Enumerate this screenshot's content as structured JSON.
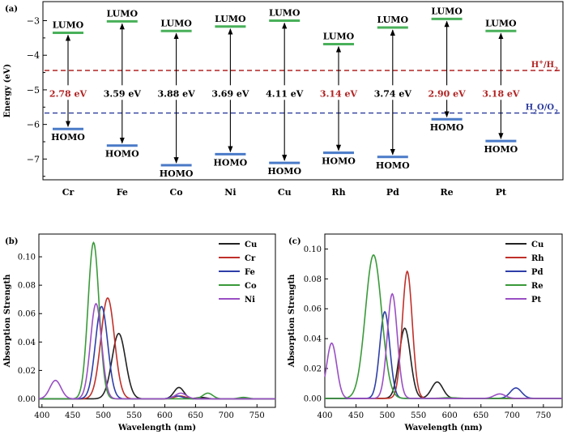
{
  "chart_data": [
    {
      "panel_label": "(a)",
      "type": "energy-level",
      "ylabel": "Energy (eV)",
      "ylim": [
        -7.6,
        -2.45
      ],
      "yticks": [
        -3,
        -4,
        -5,
        -6,
        -7
      ],
      "ytick_labels": [
        "−3",
        "−4",
        "−5",
        "−6",
        "−7"
      ],
      "lumo_text": "LUMO",
      "homo_text": "HOMO",
      "reference_lines": [
        {
          "label_main": "H",
          "label_sup": "+",
          "label_mid": "/H",
          "label_sub": "2",
          "energy": -4.44,
          "color": "#b22222"
        },
        {
          "label_main": "H",
          "label_sub": "2",
          "label_mid": "O/O",
          "label_sub2": "2",
          "energy": -5.67,
          "color": "#2b3b9c"
        }
      ],
      "metals": [
        {
          "name": "Cr",
          "lumo": -3.35,
          "homo": -6.13,
          "gap_label": "2.78 eV",
          "gap_color": "#b22222"
        },
        {
          "name": "Fe",
          "lumo": -3.02,
          "homo": -6.61,
          "gap_label": "3.59 eV",
          "gap_color": "#000000"
        },
        {
          "name": "Co",
          "lumo": -3.3,
          "homo": -7.18,
          "gap_label": "3.88 eV",
          "gap_color": "#000000"
        },
        {
          "name": "Ni",
          "lumo": -3.17,
          "homo": -6.86,
          "gap_label": "3.69 eV",
          "gap_color": "#000000"
        },
        {
          "name": "Cu",
          "lumo": -3.0,
          "homo": -7.11,
          "gap_label": "4.11 eV",
          "gap_color": "#000000"
        },
        {
          "name": "Rh",
          "lumo": -3.68,
          "homo": -6.82,
          "gap_label": "3.14 eV",
          "gap_color": "#b22222"
        },
        {
          "name": "Pd",
          "lumo": -3.2,
          "homo": -6.94,
          "gap_label": "3.74 eV",
          "gap_color": "#000000"
        },
        {
          "name": "Re",
          "lumo": -2.95,
          "homo": -5.85,
          "gap_label": "2.90 eV",
          "gap_color": "#b22222"
        },
        {
          "name": "Pt",
          "lumo": -3.3,
          "homo": -6.48,
          "gap_label": "3.18 eV",
          "gap_color": "#b22222"
        }
      ]
    },
    {
      "panel_label": "(b)",
      "type": "line",
      "xlabel": "Wavelength (nm)",
      "ylabel": "Absorption Strength",
      "xlim": [
        395,
        780
      ],
      "ylim": [
        -0.006,
        0.116
      ],
      "xticks": [
        400,
        450,
        500,
        550,
        600,
        650,
        700,
        750
      ],
      "yticks": [
        0.0,
        0.02,
        0.04,
        0.06,
        0.08,
        0.1
      ],
      "ytick_labels": [
        "0.00",
        "0.02",
        "0.04",
        "0.06",
        "0.08",
        "0.10"
      ],
      "series": [
        {
          "name": "Cu",
          "color": "#222222",
          "peaks": [
            [
              525,
              0.046,
              11
            ],
            [
              623,
              0.008,
              8
            ],
            [
              660,
              0.001,
              8
            ]
          ]
        },
        {
          "name": "Cr",
          "color": "#c0302a",
          "peaks": [
            [
              507,
              0.071,
              11
            ],
            [
              625,
              0.002,
              9
            ]
          ]
        },
        {
          "name": "Fe",
          "color": "#2e3fa8",
          "peaks": [
            [
              497,
              0.065,
              10
            ],
            [
              620,
              0.002,
              9
            ]
          ]
        },
        {
          "name": "Co",
          "color": "#3a9a3a",
          "peaks": [
            [
              484,
              0.11,
              9
            ],
            [
              670,
              0.004,
              8
            ],
            [
              728,
              0.001,
              8
            ]
          ]
        },
        {
          "name": "Ni",
          "color": "#9a4fc4",
          "peaks": [
            [
              422,
              0.013,
              9
            ],
            [
              488,
              0.067,
              9
            ],
            [
              626,
              0.004,
              9
            ]
          ]
        }
      ]
    },
    {
      "panel_label": "(c)",
      "type": "line",
      "xlabel": "Wavelength (nm)",
      "ylabel": "Absorption Strength",
      "xlim": [
        400,
        780
      ],
      "ylim": [
        -0.006,
        0.11
      ],
      "xticks": [
        400,
        450,
        500,
        550,
        600,
        650,
        700,
        750
      ],
      "yticks": [
        0.0,
        0.02,
        0.04,
        0.06,
        0.08,
        0.1
      ],
      "ytick_labels": [
        "0.00",
        "0.02",
        "0.04",
        "0.06",
        "0.08",
        "0.10"
      ],
      "series": [
        {
          "name": "Cu",
          "color": "#222222",
          "peaks": [
            [
              528,
              0.047,
              9
            ],
            [
              580,
              0.011,
              9
            ]
          ]
        },
        {
          "name": "Rh",
          "color": "#c0302a",
          "peaks": [
            [
              532,
              0.085,
              8
            ]
          ]
        },
        {
          "name": "Pd",
          "color": "#2e3fa8",
          "peaks": [
            [
              496,
              0.058,
              8
            ],
            [
              706,
              0.007,
              9
            ]
          ]
        },
        {
          "name": "Re",
          "color": "#3a9a3a",
          "peaks": [
            [
              478,
              0.096,
              13
            ],
            [
              600,
              0.0005,
              12
            ]
          ]
        },
        {
          "name": "Pt",
          "color": "#9a4fc4",
          "peaks": [
            [
              411,
              0.037,
              8
            ],
            [
              508,
              0.07,
              8
            ],
            [
              680,
              0.003,
              9
            ]
          ]
        }
      ]
    }
  ]
}
